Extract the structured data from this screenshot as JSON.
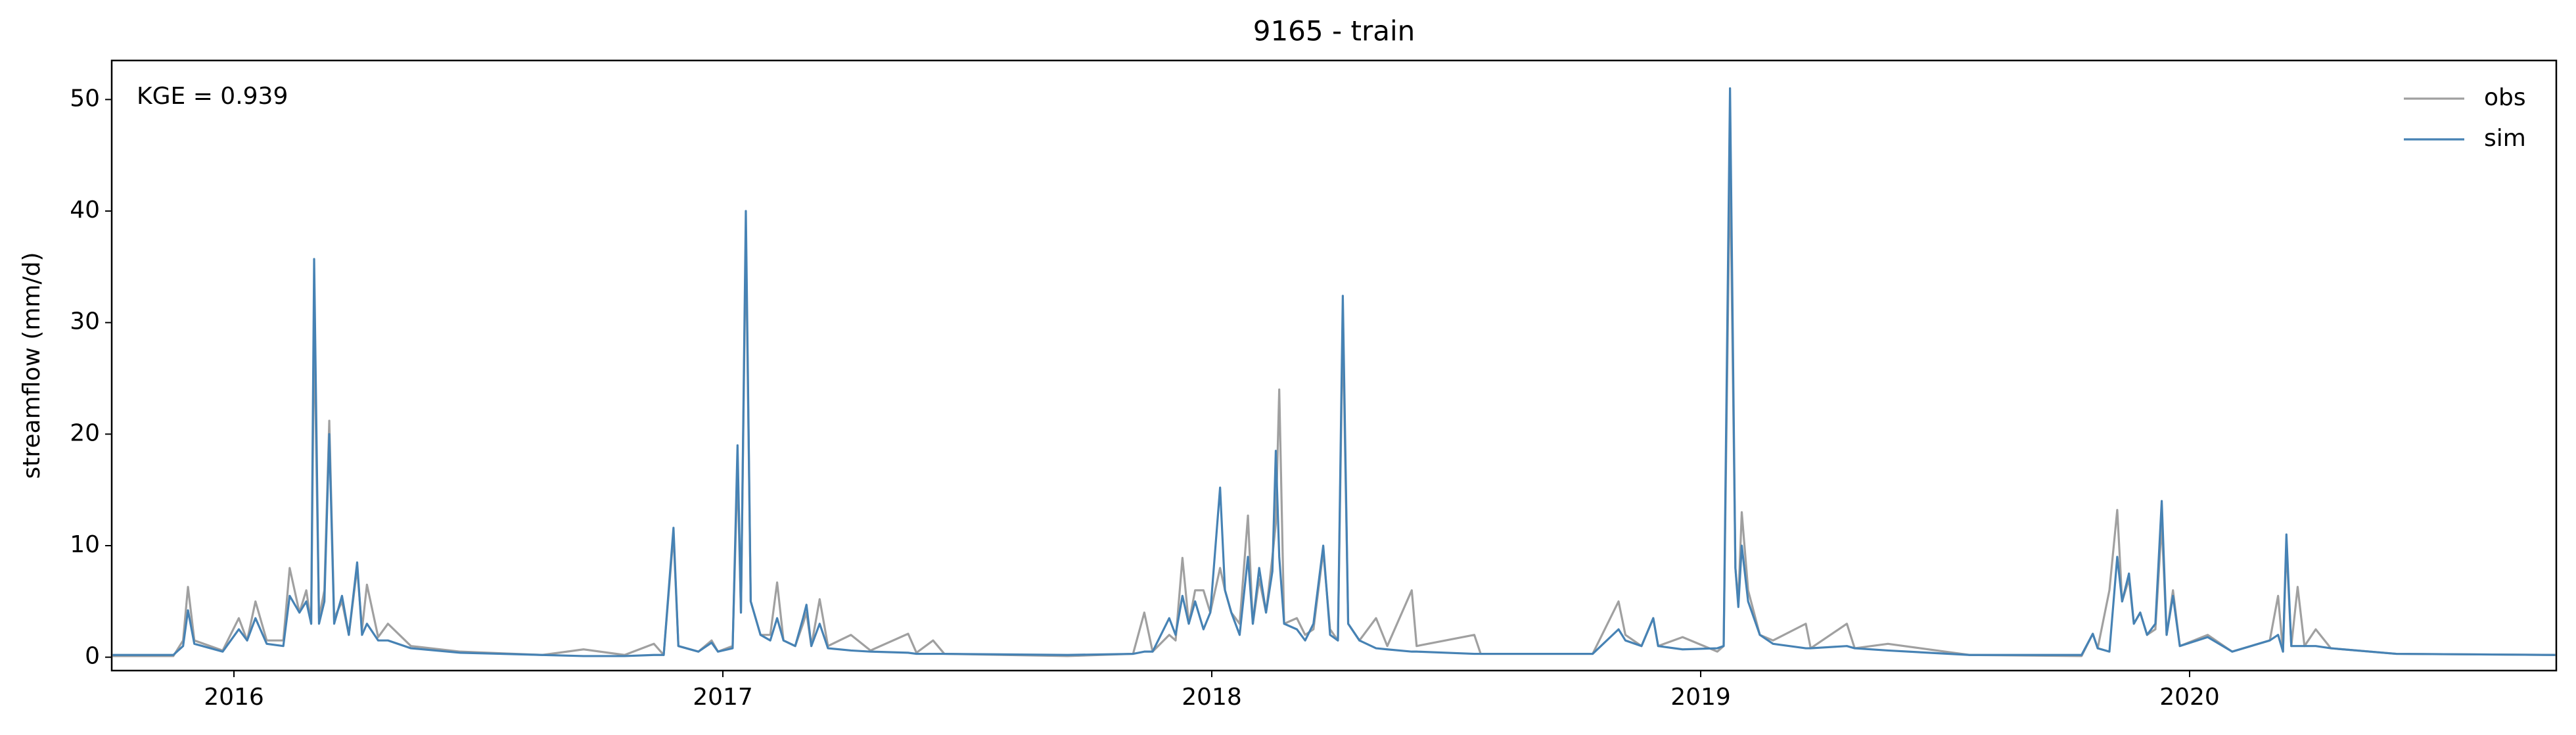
{
  "chart_data": {
    "type": "line",
    "title": "9165 - train",
    "ylabel": "streamflow (mm/d)",
    "annotation": "KGE = 0.939",
    "x": [
      2015.752,
      2015.876,
      2015.896,
      2015.906,
      2015.919,
      2015.977,
      2016.01,
      2016.027,
      2016.044,
      2016.067,
      2016.101,
      2016.114,
      2016.134,
      2016.148,
      2016.158,
      2016.164,
      2016.174,
      2016.185,
      2016.195,
      2016.205,
      2016.221,
      2016.235,
      2016.252,
      2016.262,
      2016.272,
      2016.295,
      2016.315,
      2016.362,
      2016.463,
      2016.631,
      2016.715,
      2016.799,
      2016.859,
      2016.879,
      2016.899,
      2016.909,
      2016.95,
      2016.977,
      2016.99,
      2017.02,
      2017.03,
      2017.037,
      2017.047,
      2017.057,
      2017.077,
      2017.097,
      2017.111,
      2017.124,
      2017.148,
      2017.164,
      2017.171,
      2017.181,
      2017.198,
      2017.215,
      2017.262,
      2017.302,
      2017.379,
      2017.396,
      2017.43,
      2017.453,
      2017.705,
      2017.839,
      2017.862,
      2017.879,
      2017.913,
      2017.926,
      2017.94,
      2017.953,
      2017.966,
      2017.983,
      2017.997,
      2018.017,
      2018.027,
      2018.04,
      2018.057,
      2018.074,
      2018.084,
      2018.097,
      2018.111,
      2018.124,
      2018.131,
      2018.138,
      2018.148,
      2018.174,
      2018.191,
      2018.208,
      2018.228,
      2018.242,
      2018.258,
      2018.268,
      2018.279,
      2018.302,
      2018.336,
      2018.359,
      2018.409,
      2018.419,
      2018.537,
      2018.55,
      2018.779,
      2018.832,
      2018.846,
      2018.879,
      2018.903,
      2018.913,
      2018.963,
      2019.034,
      2019.047,
      2019.06,
      2019.071,
      2019.077,
      2019.084,
      2019.097,
      2019.121,
      2019.148,
      2019.215,
      2019.225,
      2019.299,
      2019.315,
      2019.383,
      2019.55,
      2019.779,
      2019.802,
      2019.812,
      2019.836,
      2019.852,
      2019.862,
      2019.876,
      2019.886,
      2019.899,
      2019.913,
      2019.93,
      2019.943,
      2019.953,
      2019.966,
      2019.98,
      2020.037,
      2020.087,
      2020.164,
      2020.181,
      2020.191,
      2020.198,
      2020.208,
      2020.221,
      2020.235,
      2020.258,
      2020.289,
      2020.423,
      2020.748
    ],
    "series": [
      {
        "name": "obs",
        "color": "#a0a0a0",
        "values": [
          0.1,
          0.1,
          1.5,
          6.3,
          1.5,
          0.6,
          3.5,
          1.5,
          5.0,
          1.5,
          1.5,
          8.0,
          4.0,
          6.0,
          3.0,
          30.0,
          3.5,
          6.0,
          21.2,
          3.5,
          5.0,
          2.0,
          8.0,
          2.5,
          6.5,
          1.8,
          3.0,
          1.0,
          0.5,
          0.2,
          0.7,
          0.2,
          1.2,
          0.2,
          11.0,
          1.0,
          0.5,
          1.5,
          0.5,
          1.0,
          17.0,
          4.0,
          38.0,
          5.0,
          2.0,
          2.0,
          6.7,
          1.5,
          1.0,
          3.0,
          4.0,
          1.0,
          5.2,
          1.0,
          2.0,
          0.6,
          2.1,
          0.4,
          1.5,
          0.3,
          0.1,
          0.3,
          4.0,
          0.5,
          2.0,
          1.5,
          8.9,
          3.0,
          6.0,
          6.0,
          4.0,
          8.0,
          6.0,
          4.0,
          3.0,
          12.7,
          3.0,
          7.0,
          4.0,
          9.0,
          12.0,
          24.0,
          3.0,
          3.5,
          2.0,
          2.5,
          9.5,
          2.5,
          1.5,
          30.0,
          3.0,
          1.5,
          3.5,
          1.0,
          6.0,
          1.0,
          2.0,
          0.3,
          0.3,
          5.0,
          2.0,
          1.0,
          3.5,
          1.0,
          1.8,
          0.5,
          1.0,
          45.0,
          8.0,
          5.0,
          13.0,
          6.0,
          2.0,
          1.5,
          3.0,
          0.8,
          3.0,
          0.8,
          1.2,
          0.2,
          0.1,
          2.1,
          0.8,
          6.0,
          13.2,
          5.0,
          7.0,
          3.0,
          4.0,
          2.0,
          2.5,
          12.0,
          2.0,
          6.0,
          1.0,
          2.0,
          0.5,
          1.5,
          5.5,
          0.5,
          10.0,
          1.0,
          6.3,
          1.0,
          2.5,
          0.8,
          0.3,
          0.2
        ]
      },
      {
        "name": "sim",
        "color": "#4682b4",
        "values": [
          0.2,
          0.2,
          1.0,
          4.2,
          1.2,
          0.5,
          2.5,
          1.5,
          3.5,
          1.2,
          1.0,
          5.5,
          4.0,
          5.0,
          3.0,
          35.7,
          3.0,
          5.0,
          20.0,
          3.0,
          5.5,
          2.0,
          8.5,
          2.0,
          3.0,
          1.5,
          1.5,
          0.8,
          0.4,
          0.2,
          0.1,
          0.1,
          0.2,
          0.2,
          11.6,
          1.0,
          0.5,
          1.3,
          0.5,
          0.8,
          19.0,
          4.0,
          40.0,
          5.0,
          2.0,
          1.5,
          3.5,
          1.5,
          1.0,
          3.5,
          4.7,
          1.0,
          3.0,
          0.8,
          0.6,
          0.5,
          0.4,
          0.3,
          0.3,
          0.3,
          0.2,
          0.3,
          0.5,
          0.5,
          3.5,
          2.0,
          5.5,
          3.0,
          5.0,
          2.5,
          4.0,
          15.2,
          6.0,
          4.0,
          2.0,
          9.0,
          3.0,
          8.0,
          4.0,
          7.7,
          18.5,
          9.0,
          3.0,
          2.5,
          1.5,
          3.0,
          10.0,
          2.0,
          1.5,
          32.4,
          3.0,
          1.5,
          0.8,
          0.7,
          0.5,
          0.5,
          0.3,
          0.3,
          0.3,
          2.5,
          1.5,
          1.0,
          3.5,
          1.0,
          0.7,
          0.8,
          1.0,
          51.0,
          8.0,
          4.5,
          10.0,
          5.0,
          2.0,
          1.2,
          0.8,
          0.8,
          1.0,
          0.8,
          0.6,
          0.2,
          0.2,
          2.1,
          0.8,
          0.5,
          9.0,
          5.0,
          7.5,
          3.0,
          4.0,
          2.0,
          3.0,
          14.0,
          2.0,
          5.5,
          1.0,
          1.8,
          0.5,
          1.5,
          2.0,
          0.5,
          11.0,
          1.0,
          1.0,
          1.0,
          1.0,
          0.8,
          0.3,
          0.2
        ]
      }
    ],
    "xlim": [
      2015.75,
      2020.75
    ],
    "xticks": [
      2016,
      2017,
      2018,
      2019,
      2020
    ],
    "ylim": [
      -1.2,
      53.5
    ],
    "yticks": [
      0,
      10,
      20,
      30,
      40,
      50
    ],
    "grid": false,
    "legend": "upper right"
  }
}
